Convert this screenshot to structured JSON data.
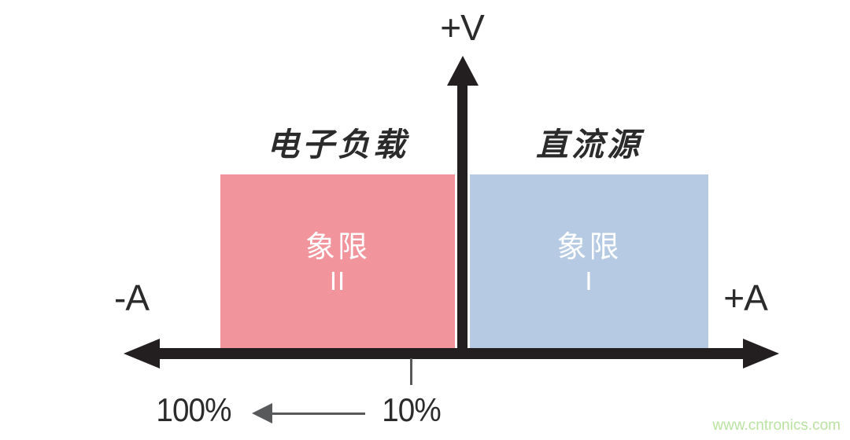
{
  "diagram": {
    "v_axis_label": "+V",
    "neg_a_label": "-A",
    "pos_a_label": "+A",
    "quadrant2": {
      "header": "电子负载",
      "name": "象限",
      "numeral": "II"
    },
    "quadrant1": {
      "header": "直流源",
      "name": "象限",
      "numeral": "I"
    },
    "scale": {
      "from_label": "100%",
      "to_label": "10%"
    },
    "watermark": "www.cntronics.com"
  },
  "colors": {
    "ink": "#231f20",
    "label_text": "#2b2b2c",
    "quadrant2_fill": "#f2949c",
    "quadrant1_fill": "#b6cbe3",
    "quadrant_text": "#ffffff",
    "scale_arrow": "#58595b",
    "watermark_green": "#b9e3a1"
  }
}
